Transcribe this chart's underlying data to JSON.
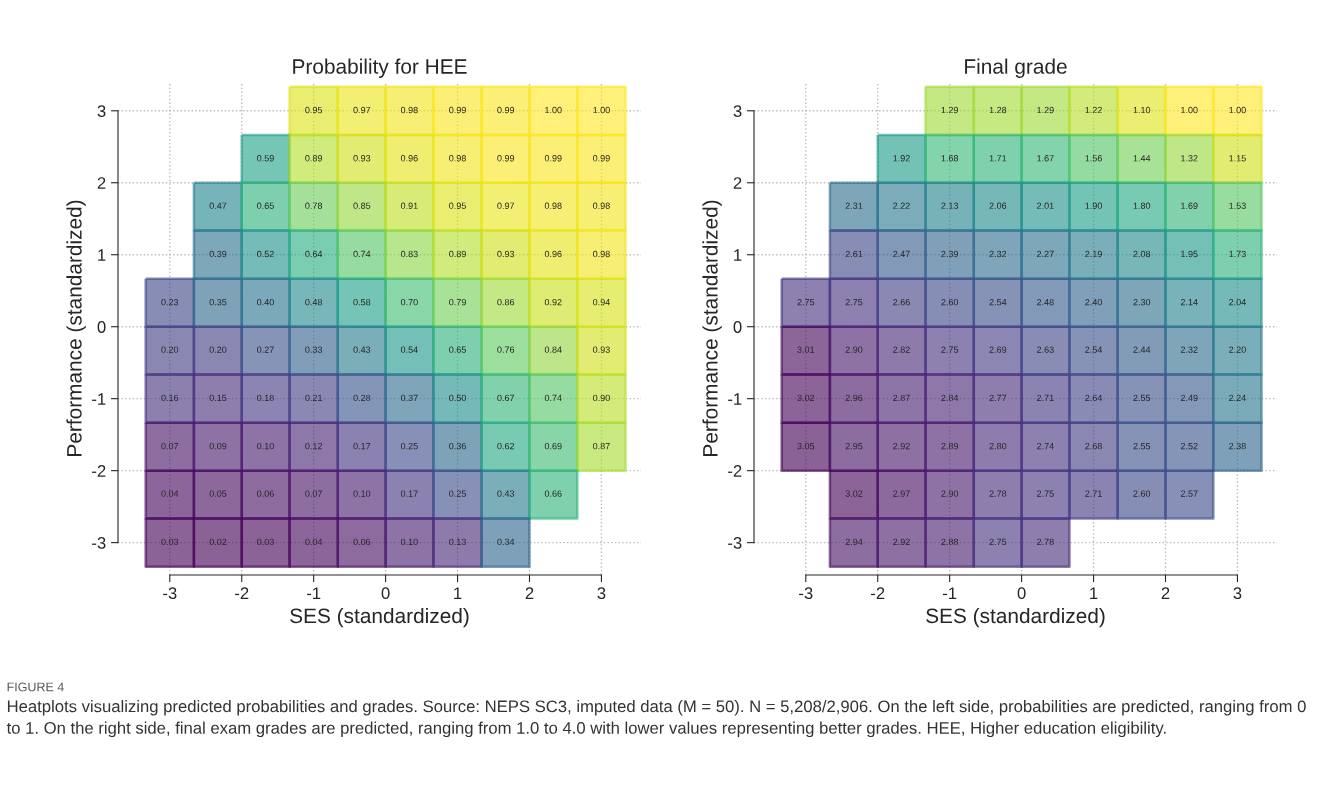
{
  "chart_data": [
    {
      "type": "heatmap",
      "title": "Probability for HEE",
      "xlabel": "SES (standardized)",
      "ylabel": "Performance (standardized)",
      "x": [
        -3,
        -2.33,
        -1.67,
        -1,
        -0.33,
        0.33,
        1,
        1.67,
        2.33,
        3
      ],
      "y": [
        3,
        2.33,
        1.67,
        1,
        0.33,
        -0.33,
        -1,
        -1.67,
        -2.33,
        -3
      ],
      "cell_labels": [
        [
          null,
          null,
          null,
          "0.95",
          "0.97",
          "0.98",
          "0.99",
          "0.99",
          "1.00",
          "1.00"
        ],
        [
          null,
          null,
          "0.59",
          "0.89",
          "0.93",
          "0.96",
          "0.98",
          "0.99",
          "0.99",
          "0.99"
        ],
        [
          null,
          "0.47",
          "0.65",
          "0.78",
          "0.85",
          "0.91",
          "0.95",
          "0.97",
          "0.98",
          "0.98"
        ],
        [
          null,
          "0.39",
          "0.52",
          "0.64",
          "0.74",
          "0.83",
          "0.89",
          "0.93",
          "0.96",
          "0.98"
        ],
        [
          "0.23",
          "0.35",
          "0.40",
          "0.48",
          "0.58",
          "0.70",
          "0.79",
          "0.86",
          "0.92",
          "0.94"
        ],
        [
          "0.20",
          "0.20",
          "0.27",
          "0.33",
          "0.43",
          "0.54",
          "0.65",
          "0.76",
          "0.84",
          "0.93"
        ],
        [
          "0.16",
          "0.15",
          "0.18",
          "0.21",
          "0.28",
          "0.37",
          "0.50",
          "0.67",
          "0.74",
          "0.90"
        ],
        [
          "0.07",
          "0.09",
          "0.10",
          "0.12",
          "0.17",
          "0.25",
          "0.36",
          "0.62",
          "0.69",
          "0.87"
        ],
        [
          "0.04",
          "0.05",
          "0.06",
          "0.07",
          "0.10",
          "0.17",
          "0.25",
          "0.43",
          "0.66",
          null
        ],
        [
          "0.03",
          "0.02",
          "0.03",
          "0.04",
          "0.06",
          "0.10",
          "0.13",
          "0.34",
          null,
          null
        ]
      ],
      "cells": [
        [
          null,
          null,
          null,
          0.95,
          0.97,
          0.98,
          0.99,
          0.99,
          1.0,
          1.0
        ],
        [
          null,
          null,
          0.59,
          0.89,
          0.93,
          0.96,
          0.98,
          0.99,
          0.99,
          0.99
        ],
        [
          null,
          0.47,
          0.65,
          0.78,
          0.85,
          0.91,
          0.95,
          0.97,
          0.98,
          0.98
        ],
        [
          null,
          0.39,
          0.52,
          0.64,
          0.74,
          0.83,
          0.89,
          0.93,
          0.96,
          0.98
        ],
        [
          0.23,
          0.35,
          0.4,
          0.48,
          0.58,
          0.7,
          0.79,
          0.86,
          0.92,
          0.94
        ],
        [
          0.2,
          0.2,
          0.27,
          0.33,
          0.43,
          0.54,
          0.65,
          0.76,
          0.84,
          0.93
        ],
        [
          0.16,
          0.15,
          0.18,
          0.21,
          0.28,
          0.37,
          0.5,
          0.67,
          0.74,
          0.9
        ],
        [
          0.07,
          0.09,
          0.1,
          0.12,
          0.17,
          0.25,
          0.36,
          0.62,
          0.69,
          0.87
        ],
        [
          0.04,
          0.05,
          0.06,
          0.07,
          0.1,
          0.17,
          0.25,
          0.43,
          0.66,
          null
        ],
        [
          0.03,
          0.02,
          0.03,
          0.04,
          0.06,
          0.1,
          0.13,
          0.34,
          null,
          null
        ]
      ],
      "data_labels": true,
      "grid": true,
      "xlim": [
        -3.72,
        3.55
      ],
      "ylim": [
        -3.45,
        3.4
      ],
      "xticks": [
        -3,
        -2,
        -1,
        0,
        1,
        2,
        3
      ],
      "yticks": [
        -3,
        -2,
        -1,
        0,
        1,
        2,
        3
      ],
      "annotations": [
        "FIGURE 4",
        "Heatplots visualizing predicted probabilities and grades. Source: NEPS SC3, imputed data (M = 50). N = 5,208/2,906. On the left side, probabilities are predicted, ranging from 0 to 1. On the right side, final exam grades are predicted, ranging from 1.0 to 4.0 with lower values representing better grades. HEE, Higher education eligibility."
      ]
    },
    {
      "type": "heatmap",
      "title": "Final grade",
      "xlabel": "SES (standardized)",
      "ylabel": "Performance (standardized)",
      "x": [
        -3,
        -2.33,
        -1.67,
        -1,
        -0.33,
        0.33,
        1,
        1.67,
        2.33,
        3
      ],
      "y": [
        3,
        2.33,
        1.67,
        1,
        0.33,
        -0.33,
        -1,
        -1.67,
        -2.33,
        -3
      ],
      "cell_labels": [
        [
          null,
          null,
          null,
          "1.29",
          "1.28",
          "1.29",
          "1.22",
          "1.10",
          "1.00",
          "1.00"
        ],
        [
          null,
          null,
          "1.92",
          "1.68",
          "1.71",
          "1.67",
          "1.56",
          "1.44",
          "1.32",
          "1.15"
        ],
        [
          null,
          "2.31",
          "2.22",
          "2.13",
          "2.06",
          "2.01",
          "1.90",
          "1.80",
          "1.69",
          "1.53"
        ],
        [
          null,
          "2.61",
          "2.47",
          "2.39",
          "2.32",
          "2.27",
          "2.19",
          "2.08",
          "1.95",
          "1.73"
        ],
        [
          "2.75",
          "2.75",
          "2.66",
          "2.60",
          "2.54",
          "2.48",
          "2.40",
          "2.30",
          "2.14",
          "2.04"
        ],
        [
          "3.01",
          "2.90",
          "2.82",
          "2.75",
          "2.69",
          "2.63",
          "2.54",
          "2.44",
          "2.32",
          "2.20"
        ],
        [
          "3.02",
          "2.96",
          "2.87",
          "2.84",
          "2.77",
          "2.71",
          "2.64",
          "2.55",
          "2.49",
          "2.24"
        ],
        [
          "3.05",
          "2.95",
          "2.92",
          "2.89",
          "2.80",
          "2.74",
          "2.68",
          "2.55",
          "2.52",
          "2.38"
        ],
        [
          null,
          "3.02",
          "2.97",
          "2.90",
          "2.78",
          "2.75",
          "2.71",
          "2.60",
          "2.57",
          null
        ],
        [
          null,
          "2.94",
          "2.92",
          "2.88",
          "2.75",
          "2.78",
          null,
          null,
          null,
          null
        ]
      ],
      "cells": [
        [
          null,
          null,
          null,
          1.29,
          1.28,
          1.29,
          1.22,
          1.1,
          1.0,
          1.0
        ],
        [
          null,
          null,
          1.92,
          1.68,
          1.71,
          1.67,
          1.56,
          1.44,
          1.32,
          1.15
        ],
        [
          null,
          2.31,
          2.22,
          2.13,
          2.06,
          2.01,
          1.9,
          1.8,
          1.69,
          1.53
        ],
        [
          null,
          2.61,
          2.47,
          2.39,
          2.32,
          2.27,
          2.19,
          2.08,
          1.95,
          1.73
        ],
        [
          2.75,
          2.75,
          2.66,
          2.6,
          2.54,
          2.48,
          2.4,
          2.3,
          2.14,
          2.04
        ],
        [
          3.01,
          2.9,
          2.82,
          2.75,
          2.69,
          2.63,
          2.54,
          2.44,
          2.32,
          2.2
        ],
        [
          3.02,
          2.96,
          2.87,
          2.84,
          2.77,
          2.71,
          2.64,
          2.55,
          2.49,
          2.24
        ],
        [
          3.05,
          2.95,
          2.92,
          2.89,
          2.8,
          2.74,
          2.68,
          2.55,
          2.52,
          2.38
        ],
        [
          null,
          3.02,
          2.97,
          2.9,
          2.78,
          2.75,
          2.71,
          2.6,
          2.57,
          null
        ],
        [
          null,
          2.94,
          2.92,
          2.88,
          2.75,
          2.78,
          null,
          null,
          null,
          null
        ]
      ],
      "data_labels": true,
      "grid": true,
      "xlim": [
        -3.72,
        3.55
      ],
      "ylim": [
        -3.45,
        3.4
      ],
      "xticks": [
        -3,
        -2,
        -1,
        0,
        1,
        2,
        3
      ],
      "yticks": [
        -3,
        -2,
        -1,
        0,
        1,
        2,
        3
      ]
    }
  ]
}
